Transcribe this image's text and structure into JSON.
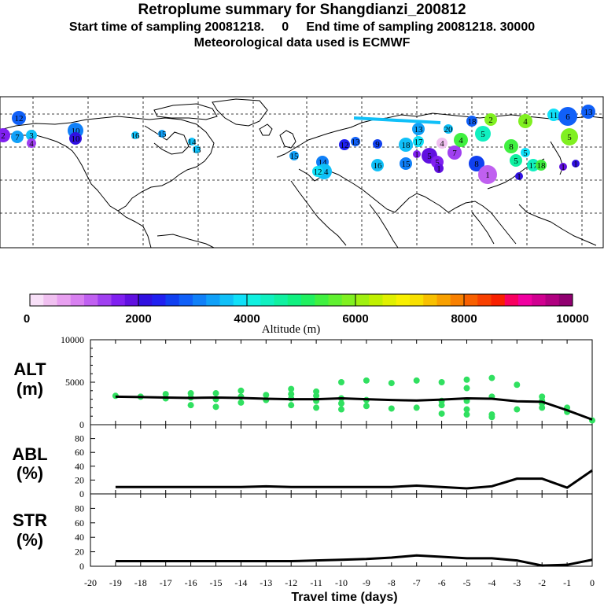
{
  "header": {
    "title": "Retroplume summary for Shangdianzi_200812",
    "subtitle": "Start time of sampling 20081218.     0     End time of sampling 20081218. 30000",
    "met_line": "Meteorological data used is ECMWF"
  },
  "map": {
    "description_labels": [
      "1",
      "2",
      "3",
      "4",
      "5",
      "6",
      "7",
      "8",
      "9",
      "10",
      "11",
      "12",
      "13",
      "14",
      "15",
      "16",
      "17",
      "18",
      "19",
      "20"
    ]
  },
  "colorbar": {
    "tick_labels": [
      "0",
      "2000",
      "4000",
      "6000",
      "8000",
      "10000"
    ],
    "title": "Altitude (m)",
    "colors": [
      "#f8e0f8",
      "#f0c0f0",
      "#e8a0f0",
      "#d880f0",
      "#c060f0",
      "#a040f0",
      "#8020f0",
      "#6010e0",
      "#3010e0",
      "#2020f0",
      "#1040f0",
      "#1060f8",
      "#1080f8",
      "#10a0f8",
      "#10c0f8",
      "#10e0f8",
      "#10f0e0",
      "#10f0c0",
      "#10f0a0",
      "#10f080",
      "#20f060",
      "#40f040",
      "#60f030",
      "#80f020",
      "#a0f010",
      "#c0f000",
      "#e0f000",
      "#f8f000",
      "#f8e000",
      "#f8c000",
      "#f8a000",
      "#f88000",
      "#f86000",
      "#f84000",
      "#f82000",
      "#f80060",
      "#f000a0",
      "#d00090",
      "#b00080",
      "#900070"
    ]
  },
  "panels": {
    "alt_label": "ALT",
    "alt_unit": "(m)",
    "abl_label": "ABL",
    "abl_unit": "(%)",
    "str_label": "STR",
    "str_unit": "(%)",
    "xlabel": "Travel time (days)"
  },
  "chart_data": [
    {
      "type": "line",
      "name": "ALT",
      "x": [
        -19,
        -18,
        -17,
        -16,
        -15,
        -14,
        -13,
        -12,
        -11,
        -10,
        -9,
        -8,
        -7,
        -6,
        -5,
        -4,
        -3,
        -2,
        -1,
        0
      ],
      "values": [
        3300,
        3250,
        3200,
        3150,
        3200,
        3150,
        3050,
        3000,
        3000,
        3100,
        3000,
        2900,
        2850,
        2950,
        3100,
        3050,
        2750,
        2700,
        1700,
        600
      ],
      "scatter_points": [
        [
          -19,
          3400
        ],
        [
          -18,
          3300
        ],
        [
          -17,
          3600
        ],
        [
          -17,
          3100
        ],
        [
          -16,
          3700
        ],
        [
          -16,
          3200
        ],
        [
          -16,
          2300
        ],
        [
          -15,
          3700
        ],
        [
          -15,
          3000
        ],
        [
          -15,
          2100
        ],
        [
          -14,
          4000
        ],
        [
          -14,
          3300
        ],
        [
          -14,
          2600
        ],
        [
          -13,
          3500
        ],
        [
          -13,
          2900
        ],
        [
          -12,
          3600
        ],
        [
          -12,
          3100
        ],
        [
          -12,
          2300
        ],
        [
          -12,
          4200
        ],
        [
          -11,
          3900
        ],
        [
          -11,
          3400
        ],
        [
          -11,
          2800
        ],
        [
          -11,
          2000
        ],
        [
          -10,
          5000
        ],
        [
          -10,
          3100
        ],
        [
          -10,
          2500
        ],
        [
          -10,
          1800
        ],
        [
          -9,
          5200
        ],
        [
          -9,
          2900
        ],
        [
          -9,
          2200
        ],
        [
          -8,
          4900
        ],
        [
          -8,
          1900
        ],
        [
          -7,
          5200
        ],
        [
          -7,
          2000
        ],
        [
          -6,
          5000
        ],
        [
          -6,
          2800
        ],
        [
          -6,
          2300
        ],
        [
          -6,
          1300
        ],
        [
          -5,
          5300
        ],
        [
          -5,
          4300
        ],
        [
          -5,
          2800
        ],
        [
          -5,
          1800
        ],
        [
          -5,
          1200
        ],
        [
          -4,
          5500
        ],
        [
          -4,
          3300
        ],
        [
          -4,
          1200
        ],
        [
          -4,
          900
        ],
        [
          -3,
          4700
        ],
        [
          -3,
          1800
        ],
        [
          -2,
          3300
        ],
        [
          -2,
          2800
        ],
        [
          -2,
          2500
        ],
        [
          -2,
          2000
        ],
        [
          -1,
          2000
        ],
        [
          -1,
          1500
        ],
        [
          0,
          500
        ]
      ],
      "ylim": [
        0,
        10000
      ],
      "ytick_labels": [
        "0",
        "5000",
        "10000"
      ]
    },
    {
      "type": "line",
      "name": "ABL",
      "x": [
        -19,
        -18,
        -17,
        -16,
        -15,
        -14,
        -13,
        -12,
        -11,
        -10,
        -9,
        -8,
        -7,
        -6,
        -5,
        -4,
        -3,
        -2,
        -1,
        0
      ],
      "values": [
        10,
        10,
        10,
        10,
        10,
        10,
        11,
        10,
        10,
        10,
        10,
        10,
        12,
        10,
        8,
        11,
        22,
        22,
        9,
        34
      ],
      "ylim": [
        0,
        100
      ],
      "ytick_labels": [
        "0",
        "20",
        "40",
        "60",
        "80"
      ]
    },
    {
      "type": "line",
      "name": "STR",
      "x": [
        -19,
        -18,
        -17,
        -16,
        -15,
        -14,
        -13,
        -12,
        -11,
        -10,
        -9,
        -8,
        -7,
        -6,
        -5,
        -4,
        -3,
        -2,
        -1,
        0
      ],
      "values": [
        7,
        7,
        7,
        7,
        7,
        7,
        7,
        7,
        8,
        9,
        10,
        12,
        15,
        13,
        11,
        11,
        8,
        1,
        2,
        9
      ],
      "ylim": [
        0,
        100
      ],
      "ytick_labels": [
        "0",
        "20",
        "40",
        "60",
        "80"
      ]
    }
  ],
  "xaxis": {
    "tick_labels": [
      "-20",
      "-19",
      "-18",
      "-17",
      "-16",
      "-15",
      "-14",
      "-13",
      "-12",
      "-11",
      "-10",
      "-9",
      "-8",
      "-7",
      "-6",
      "-5",
      "-4",
      "-3",
      "-2",
      "-1",
      "0"
    ]
  }
}
